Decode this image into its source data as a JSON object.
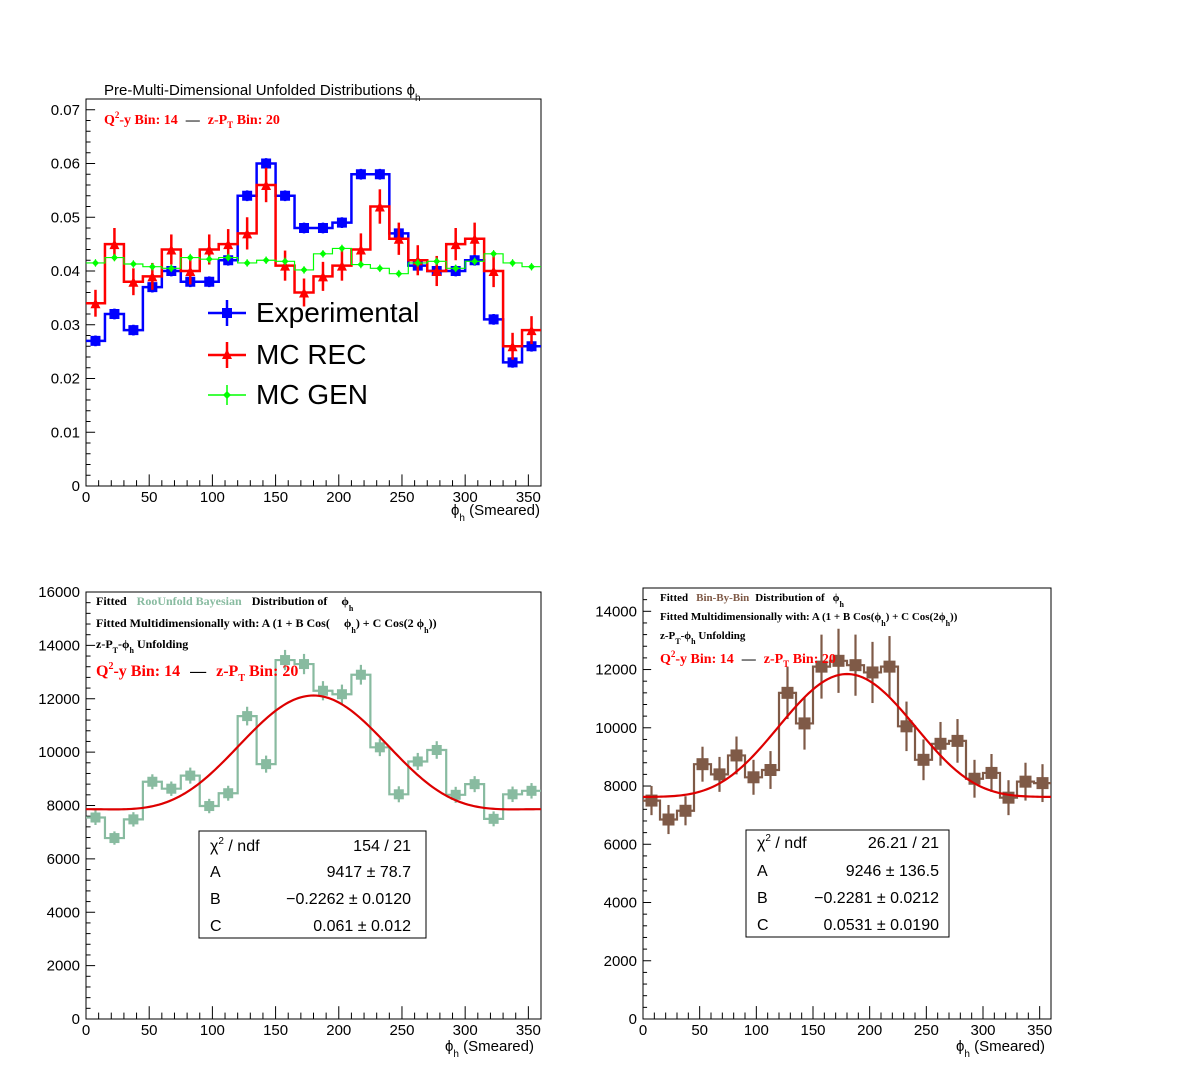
{
  "chart_data": [
    {
      "type": "line",
      "title": "Pre-Multi-Dimensional Unfolded Distributions ϕ",
      "title_sub": "h",
      "annotation": {
        "q2y_label": "Q",
        "q2y_sup": "2",
        "q2y_rest": "-y Bin: 14",
        "dash": "—",
        "zpt_label": "z-P",
        "zpt_sub": "T",
        "zpt_rest": " Bin: 20"
      },
      "xlabel": "ϕ",
      "xlabel_sub": "h",
      "xlabel_rest": " (Smeared)",
      "xlim": [
        0,
        360
      ],
      "ylim": [
        0,
        0.072
      ],
      "xticks": [
        0,
        50,
        100,
        150,
        200,
        250,
        300,
        350
      ],
      "xtick_labels": [
        "0",
        "50",
        "100",
        "150",
        "200",
        "250",
        "300",
        "350"
      ],
      "yticks": [
        0,
        0.01,
        0.02,
        0.03,
        0.04,
        0.05,
        0.06,
        0.07
      ],
      "ytick_labels": [
        "0",
        "0.01",
        "0.02",
        "0.03",
        "0.04",
        "0.05",
        "0.06",
        "0.07"
      ],
      "bin_edges": [
        0,
        15,
        30,
        45,
        60,
        75,
        90,
        105,
        120,
        135,
        150,
        165,
        180,
        195,
        210,
        225,
        240,
        255,
        270,
        285,
        300,
        315,
        330,
        345,
        360
      ],
      "series": [
        {
          "name": "Experimental",
          "color": "#0000ff",
          "values": [
            0.027,
            0.032,
            0.029,
            0.037,
            0.04,
            0.038,
            0.038,
            0.042,
            0.054,
            0.06,
            0.054,
            0.048,
            0.048,
            0.049,
            0.058,
            0.058,
            0.047,
            0.041,
            0.04,
            0.04,
            0.042,
            0.031,
            0.023,
            0.026
          ],
          "errors": [
            0.001,
            0.001,
            0.001,
            0.001,
            0.001,
            0.001,
            0.001,
            0.001,
            0.001,
            0.001,
            0.001,
            0.001,
            0.001,
            0.001,
            0.001,
            0.001,
            0.001,
            0.001,
            0.001,
            0.001,
            0.001,
            0.001,
            0.001,
            0.001
          ]
        },
        {
          "name": "MC REC",
          "color": "#ff0000",
          "values": [
            0.034,
            0.045,
            0.038,
            0.039,
            0.044,
            0.04,
            0.044,
            0.045,
            0.047,
            0.056,
            0.041,
            0.036,
            0.039,
            0.041,
            0.044,
            0.052,
            0.046,
            0.042,
            0.04,
            0.045,
            0.046,
            0.04,
            0.026,
            0.029
          ],
          "errors": [
            0.0025,
            0.003,
            0.0025,
            0.0025,
            0.0028,
            0.0025,
            0.0028,
            0.0028,
            0.003,
            0.0032,
            0.0028,
            0.0026,
            0.0027,
            0.0028,
            0.003,
            0.0032,
            0.003,
            0.0028,
            0.0028,
            0.003,
            0.003,
            0.003,
            0.0025,
            0.0026
          ]
        },
        {
          "name": "MC GEN",
          "color": "#00ff00",
          "values": [
            0.0415,
            0.0425,
            0.0413,
            0.0408,
            0.0405,
            0.0425,
            0.0422,
            0.0425,
            0.0415,
            0.042,
            0.0418,
            0.0402,
            0.0432,
            0.0442,
            0.0412,
            0.0405,
            0.0395,
            0.0415,
            0.0418,
            0.0405,
            0.0418,
            0.0432,
            0.0415,
            0.0408
          ],
          "errors": [
            0.0007,
            0.0007,
            0.0007,
            0.0007,
            0.0007,
            0.0007,
            0.0007,
            0.0007,
            0.0007,
            0.0007,
            0.0007,
            0.0007,
            0.0007,
            0.0007,
            0.0007,
            0.0007,
            0.0007,
            0.0007,
            0.0007,
            0.0007,
            0.0007,
            0.0007,
            0.0007,
            0.0007
          ]
        }
      ],
      "legend": [
        "Experimental",
        "MC REC",
        "MC GEN"
      ]
    },
    {
      "type": "line",
      "title_l1": {
        "fitted": "Fitted",
        "method": "RooUnfold Bayesian",
        "dist": "Distribution of",
        "phi": "ϕ",
        "phi_sub": "h"
      },
      "title_l2": {
        "pre": "Fitted Multidimensionally with: A (1 + B Cos(",
        "phi": "ϕ",
        "sub": "h",
        "mid": ") + C Cos(2 ",
        "phi2": "ϕ",
        "sub2": "h",
        "end": "))"
      },
      "title_l3": {
        "a": "z-P",
        "a_sub": "T",
        "b": "-ϕ",
        "b_sub": "h",
        "c": " Unfolding"
      },
      "annotation": {
        "q2y_label": "Q",
        "q2y_sup": "2",
        "q2y_rest": "-y Bin: 14",
        "dash": "—",
        "zpt_label": "z-P",
        "zpt_sub": "T",
        "zpt_rest": " Bin: 20"
      },
      "xlabel": "ϕ",
      "xlabel_sub": "h",
      "xlabel_rest": " (Smeared)",
      "xlim": [
        0,
        360
      ],
      "ylim": [
        0,
        16000
      ],
      "xticks": [
        0,
        50,
        100,
        150,
        200,
        250,
        300,
        350
      ],
      "xtick_labels": [
        "0",
        "50",
        "100",
        "150",
        "200",
        "250",
        "300",
        "350"
      ],
      "yticks": [
        0,
        2000,
        4000,
        6000,
        8000,
        10000,
        12000,
        14000,
        16000
      ],
      "ytick_labels": [
        "0",
        "2000",
        "4000",
        "6000",
        "8000",
        "10000",
        "12000",
        "14000",
        "16000"
      ],
      "bin_edges": [
        0,
        15,
        30,
        45,
        60,
        75,
        90,
        105,
        120,
        135,
        150,
        165,
        180,
        195,
        210,
        225,
        240,
        255,
        270,
        285,
        300,
        315,
        330,
        345,
        360
      ],
      "series": [
        {
          "name": "RooUnfold Bayesian",
          "color": "#88bba0",
          "values": [
            7550,
            6780,
            7480,
            8890,
            8630,
            9120,
            7980,
            8460,
            11350,
            9550,
            13450,
            13300,
            12300,
            12170,
            12900,
            10180,
            8420,
            9650,
            10080,
            8400,
            8800,
            7500,
            8420,
            8550
          ],
          "errors": [
            280,
            250,
            270,
            280,
            270,
            300,
            270,
            280,
            350,
            320,
            380,
            380,
            360,
            360,
            370,
            330,
            300,
            320,
            330,
            300,
            300,
            280,
            290,
            290
          ]
        }
      ],
      "fit": {
        "A": 9417,
        "B": -0.2262,
        "C": 0.061,
        "color": "#dd0000"
      },
      "stats": {
        "chi2_label": "χ",
        "chi2_sup": "2",
        "chi2_rest": " / ndf",
        "chi2_value": "154 / 21",
        "A_label": "A",
        "A_value": "9417  ± 78.7",
        "B_label": "B",
        "B_value": "−0.2262  ± 0.0120",
        "C_label": "C",
        "C_value": "0.061 ± 0.012"
      }
    },
    {
      "type": "line",
      "title_l1": {
        "fitted": "Fitted",
        "method": "Bin-By-Bin",
        "dist": "Distribution of",
        "phi": "ϕ",
        "phi_sub": "h"
      },
      "title_l2": {
        "pre": "Fitted Multidimensionally with: A (1 + B Cos(",
        "phi": "ϕ",
        "sub": "h",
        "mid": ") + C Cos(2",
        "phi2": "ϕ",
        "sub2": "h",
        "end": "))"
      },
      "title_l3": {
        "a": "z-P",
        "a_sub": "T",
        "b": "-ϕ",
        "b_sub": "h",
        "c": " Unfolding"
      },
      "annotation": {
        "q2y_label": "Q",
        "q2y_sup": "2",
        "q2y_rest": "-y Bin: 14",
        "dash": "—",
        "zpt_label": "z-P",
        "zpt_sub": "T",
        "zpt_rest": " Bin: 20"
      },
      "xlabel": "ϕ",
      "xlabel_sub": "h",
      "xlabel_rest": " (Smeared)",
      "xlim": [
        0,
        360
      ],
      "ylim": [
        0,
        14800
      ],
      "xticks": [
        0,
        50,
        100,
        150,
        200,
        250,
        300,
        350
      ],
      "xtick_labels": [
        "0",
        "50",
        "100",
        "150",
        "200",
        "250",
        "300",
        "350"
      ],
      "yticks": [
        0,
        2000,
        4000,
        6000,
        8000,
        10000,
        12000,
        14000
      ],
      "ytick_labels": [
        "0",
        "2000",
        "4000",
        "6000",
        "8000",
        "10000",
        "12000",
        "14000"
      ],
      "bin_edges": [
        0,
        15,
        30,
        45,
        60,
        75,
        90,
        105,
        120,
        135,
        150,
        165,
        180,
        195,
        210,
        225,
        240,
        255,
        270,
        285,
        300,
        315,
        330,
        345,
        360
      ],
      "series": [
        {
          "name": "Bin-By-Bin",
          "color": "#7f5a47",
          "values": [
            7500,
            6850,
            7150,
            8750,
            8400,
            9050,
            8300,
            8550,
            11200,
            10150,
            12100,
            12300,
            12150,
            11900,
            12100,
            10050,
            8900,
            9450,
            9550,
            8250,
            8450,
            7600,
            8150,
            8100
          ],
          "errors": [
            500,
            500,
            500,
            600,
            600,
            650,
            600,
            650,
            900,
            900,
            1100,
            1100,
            1050,
            1050,
            1050,
            850,
            700,
            750,
            750,
            650,
            650,
            600,
            650,
            650
          ]
        }
      ],
      "fit": {
        "A": 9246,
        "B": -0.2281,
        "C": 0.0531,
        "color": "#dd0000"
      },
      "stats": {
        "chi2_label": "χ",
        "chi2_sup": "2",
        "chi2_rest": " / ndf",
        "chi2_value": "26.21 / 21",
        "A_label": "A",
        "A_value": "9246 ± 136.5",
        "B_label": "B",
        "B_value": "−0.2281 ± 0.0212",
        "C_label": "C",
        "C_value": "0.0531 ± 0.0190"
      }
    }
  ]
}
